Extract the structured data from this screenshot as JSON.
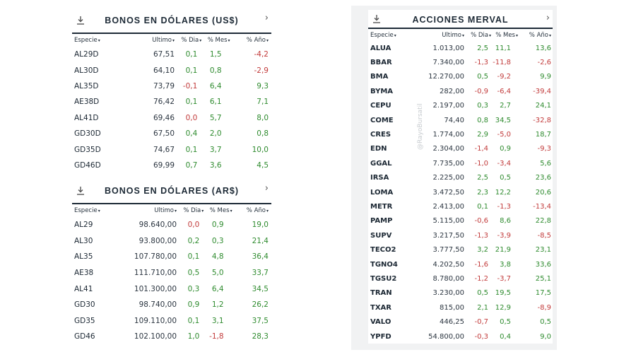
{
  "columns": {
    "especie": "Especie",
    "ultimo": "Ultimo",
    "dia": "% Dia",
    "mes": "% Mes",
    "anio": "% Año",
    "sort_glyph": "▾"
  },
  "panels": {
    "usd": {
      "title": "BONOS EN DÓLARES (US$)",
      "rows": [
        {
          "especie": "AL29D",
          "ultimo": "67,51",
          "dia": "0,1",
          "mes": "1,5",
          "anio": "-4,2"
        },
        {
          "especie": "AL30D",
          "ultimo": "64,10",
          "dia": "0,1",
          "mes": "0,8",
          "anio": "-2,9"
        },
        {
          "especie": "AL35D",
          "ultimo": "73,79",
          "dia": "-0,1",
          "mes": "6,4",
          "anio": "9,3"
        },
        {
          "especie": "AE38D",
          "ultimo": "76,42",
          "dia": "0,1",
          "mes": "6,1",
          "anio": "7,1"
        },
        {
          "especie": "AL41D",
          "ultimo": "69,46",
          "dia": "0,0",
          "mes": "5,7",
          "anio": "8,0"
        },
        {
          "especie": "GD30D",
          "ultimo": "67,50",
          "dia": "0,4",
          "mes": "2,0",
          "anio": "0,8"
        },
        {
          "especie": "GD35D",
          "ultimo": "74,67",
          "dia": "0,1",
          "mes": "3,7",
          "anio": "10,0"
        },
        {
          "especie": "GD46D",
          "ultimo": "69,99",
          "dia": "0,7",
          "mes": "3,6",
          "anio": "4,5"
        }
      ]
    },
    "ars": {
      "title": "BONOS EN DÓLARES (AR$)",
      "rows": [
        {
          "especie": "AL29",
          "ultimo": "98.640,00",
          "dia": "0,0",
          "mes": "0,9",
          "anio": "19,0"
        },
        {
          "especie": "AL30",
          "ultimo": "93.800,00",
          "dia": "0,2",
          "mes": "0,3",
          "anio": "21,4"
        },
        {
          "especie": "AL35",
          "ultimo": "107.780,00",
          "dia": "0,1",
          "mes": "4,8",
          "anio": "36,4"
        },
        {
          "especie": "AE38",
          "ultimo": "111.710,00",
          "dia": "0,5",
          "mes": "5,0",
          "anio": "33,7"
        },
        {
          "especie": "AL41",
          "ultimo": "101.300,00",
          "dia": "0,3",
          "mes": "6,4",
          "anio": "34,5"
        },
        {
          "especie": "GD30",
          "ultimo": "98.740,00",
          "dia": "0,9",
          "mes": "1,2",
          "anio": "26,2"
        },
        {
          "especie": "GD35",
          "ultimo": "109.110,00",
          "dia": "0,1",
          "mes": "3,1",
          "anio": "37,5"
        },
        {
          "especie": "GD46",
          "ultimo": "102.100,00",
          "dia": "1,0",
          "mes": "-1,8",
          "anio": "28,3"
        }
      ]
    },
    "merval": {
      "title": "ACCIONES MERVAL",
      "rows": [
        {
          "especie": "ALUA",
          "ultimo": "1.013,00",
          "dia": "2,5",
          "mes": "11,1",
          "anio": "13,6"
        },
        {
          "especie": "BBAR",
          "ultimo": "7.340,00",
          "dia": "-1,3",
          "mes": "-11,8",
          "anio": "-2,6"
        },
        {
          "especie": "BMA",
          "ultimo": "12.270,00",
          "dia": "0,5",
          "mes": "-9,2",
          "anio": "9,9"
        },
        {
          "especie": "BYMA",
          "ultimo": "282,00",
          "dia": "-0,9",
          "mes": "-6,4",
          "anio": "-39,4"
        },
        {
          "especie": "CEPU",
          "ultimo": "2.197,00",
          "dia": "0,3",
          "mes": "2,7",
          "anio": "24,1"
        },
        {
          "especie": "COME",
          "ultimo": "74,40",
          "dia": "0,8",
          "mes": "34,5",
          "anio": "-32,8"
        },
        {
          "especie": "CRES",
          "ultimo": "1.774,00",
          "dia": "2,9",
          "mes": "-5,0",
          "anio": "18,7"
        },
        {
          "especie": "EDN",
          "ultimo": "2.304,00",
          "dia": "-1,4",
          "mes": "0,9",
          "anio": "-9,3"
        },
        {
          "especie": "GGAL",
          "ultimo": "7.735,00",
          "dia": "-1,0",
          "mes": "-3,4",
          "anio": "5,6"
        },
        {
          "especie": "IRSA",
          "ultimo": "2.225,00",
          "dia": "2,5",
          "mes": "0,5",
          "anio": "23,6"
        },
        {
          "especie": "LOMA",
          "ultimo": "3.472,50",
          "dia": "2,3",
          "mes": "12,2",
          "anio": "20,6"
        },
        {
          "especie": "METR",
          "ultimo": "2.413,00",
          "dia": "0,1",
          "mes": "-1,3",
          "anio": "-13,4"
        },
        {
          "especie": "PAMP",
          "ultimo": "5.115,00",
          "dia": "-0,6",
          "mes": "8,6",
          "anio": "22,8"
        },
        {
          "especie": "SUPV",
          "ultimo": "3.217,50",
          "dia": "-1,3",
          "mes": "-3,9",
          "anio": "-8,5"
        },
        {
          "especie": "TECO2",
          "ultimo": "3.777,50",
          "dia": "3,2",
          "mes": "21,9",
          "anio": "23,1"
        },
        {
          "especie": "TGNO4",
          "ultimo": "4.202,50",
          "dia": "-1,6",
          "mes": "3,8",
          "anio": "33,6"
        },
        {
          "especie": "TGSU2",
          "ultimo": "8.780,00",
          "dia": "-1,2",
          "mes": "-3,7",
          "anio": "25,1"
        },
        {
          "especie": "TRAN",
          "ultimo": "3.230,00",
          "dia": "0,5",
          "mes": "19,5",
          "anio": "17,5"
        },
        {
          "especie": "TXAR",
          "ultimo": "815,00",
          "dia": "2,1",
          "mes": "12,9",
          "anio": "-8,9"
        },
        {
          "especie": "VALO",
          "ultimo": "446,25",
          "dia": "-0,7",
          "mes": "0,5",
          "anio": "0,5"
        },
        {
          "especie": "YPFD",
          "ultimo": "54.800,00",
          "dia": "-0,3",
          "mes": "0,4",
          "anio": "9,0"
        }
      ]
    }
  },
  "watermark": "@RayoBursatil",
  "icons": {
    "download": "download-icon",
    "chevron": "chevron-right-icon"
  },
  "colors": {
    "positive": "#2e8b2e",
    "negative": "#c23b3b",
    "header_rule": "#1e2b38"
  }
}
